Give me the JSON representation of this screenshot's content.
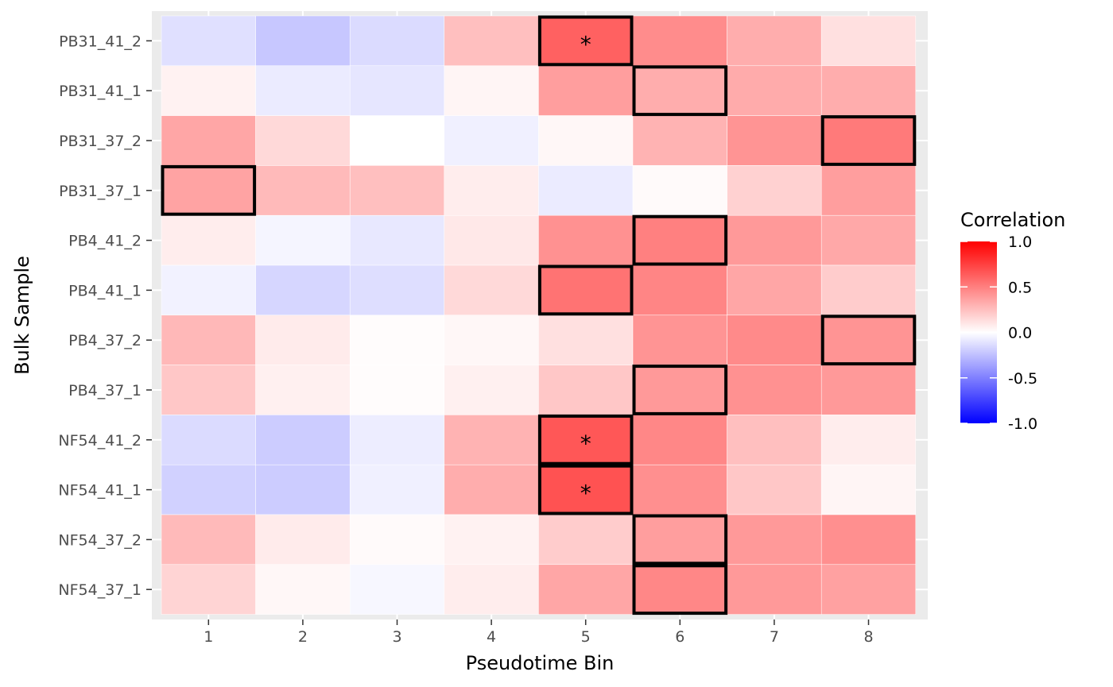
{
  "chart_data": {
    "type": "heatmap",
    "title": "",
    "xlabel": "Pseudotime Bin",
    "ylabel": "Bulk Sample",
    "x_categories": [
      "1",
      "2",
      "3",
      "4",
      "5",
      "6",
      "7",
      "8"
    ],
    "y_categories": [
      "PB31_41_2",
      "PB31_41_1",
      "PB31_37_2",
      "PB31_37_1",
      "PB4_41_2",
      "PB4_41_1",
      "PB4_37_2",
      "PB4_37_1",
      "NF54_41_2",
      "NF54_41_1",
      "NF54_37_2",
      "NF54_37_1"
    ],
    "values": [
      [
        -0.12,
        -0.22,
        -0.14,
        0.25,
        0.62,
        0.45,
        0.32,
        0.12
      ],
      [
        0.05,
        -0.08,
        -0.1,
        0.04,
        0.38,
        0.32,
        0.33,
        0.32
      ],
      [
        0.35,
        0.15,
        0.0,
        -0.06,
        0.03,
        0.3,
        0.42,
        0.52
      ],
      [
        0.36,
        0.27,
        0.25,
        0.07,
        -0.08,
        0.02,
        0.18,
        0.38
      ],
      [
        0.07,
        -0.04,
        -0.09,
        0.09,
        0.43,
        0.5,
        0.4,
        0.34
      ],
      [
        -0.05,
        -0.16,
        -0.13,
        0.15,
        0.55,
        0.48,
        0.35,
        0.2
      ],
      [
        0.28,
        0.08,
        0.01,
        0.03,
        0.12,
        0.42,
        0.46,
        0.42
      ],
      [
        0.22,
        0.06,
        0.01,
        0.06,
        0.22,
        0.4,
        0.43,
        0.4
      ],
      [
        -0.14,
        -0.2,
        -0.07,
        0.3,
        0.66,
        0.47,
        0.25,
        0.07
      ],
      [
        -0.18,
        -0.2,
        -0.06,
        0.32,
        0.68,
        0.44,
        0.22,
        0.04
      ],
      [
        0.27,
        0.08,
        0.02,
        0.05,
        0.2,
        0.38,
        0.4,
        0.44
      ],
      [
        0.17,
        0.03,
        -0.03,
        0.07,
        0.35,
        0.47,
        0.4,
        0.37
      ]
    ],
    "highlighted": [
      {
        "sample": "PB31_41_2",
        "bin": "5"
      },
      {
        "sample": "PB31_41_1",
        "bin": "6"
      },
      {
        "sample": "PB31_37_2",
        "bin": "8"
      },
      {
        "sample": "PB31_37_1",
        "bin": "1"
      },
      {
        "sample": "PB4_41_2",
        "bin": "6"
      },
      {
        "sample": "PB4_41_1",
        "bin": "5"
      },
      {
        "sample": "PB4_37_2",
        "bin": "8"
      },
      {
        "sample": "PB4_37_1",
        "bin": "6"
      },
      {
        "sample": "NF54_41_2",
        "bin": "5"
      },
      {
        "sample": "NF54_41_1",
        "bin": "5"
      },
      {
        "sample": "NF54_37_2",
        "bin": "6"
      },
      {
        "sample": "NF54_37_1",
        "bin": "6"
      }
    ],
    "starred": [
      {
        "sample": "PB31_41_2",
        "bin": "5",
        "label": "*"
      },
      {
        "sample": "NF54_41_2",
        "bin": "5",
        "label": "*"
      },
      {
        "sample": "NF54_41_1",
        "bin": "5",
        "label": "*"
      }
    ],
    "color_scale": {
      "low": "#0000FF",
      "mid": "#FFFFFF",
      "high": "#FF0000",
      "limits": [
        -1.0,
        1.0
      ]
    },
    "legend": {
      "title": "Correlation",
      "breaks": [
        "1.0",
        "0.5",
        "0.0",
        "-0.5",
        "-1.0"
      ],
      "position": "right"
    },
    "panel_background": "#EBEBEB",
    "grid": true
  }
}
